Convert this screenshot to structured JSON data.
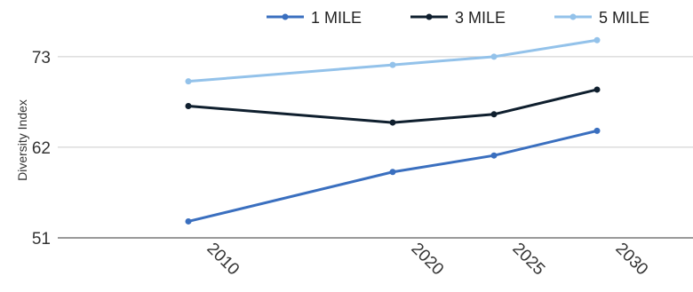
{
  "chart_data": {
    "type": "line",
    "ylabel": "Diversity Index",
    "xlabel": "",
    "ylim": [
      51,
      76
    ],
    "yticks": [
      "51",
      "62",
      "73"
    ],
    "xticks": [
      "2010",
      "2020",
      "2025",
      "2030"
    ],
    "x": [
      2010,
      2020,
      2025,
      2030
    ],
    "grid": "horizontal",
    "legend_position": "top-right",
    "series": [
      {
        "name": "1 MILE",
        "color": "#3a6fbf",
        "values": [
          53.0,
          59.0,
          61.0,
          64.0
        ]
      },
      {
        "name": "3 MILE",
        "color": "#0f1f2e",
        "values": [
          67.0,
          65.0,
          66.0,
          69.0
        ]
      },
      {
        "name": "5 MILE",
        "color": "#93c2ea",
        "values": [
          70.0,
          72.0,
          73.0,
          75.0
        ]
      }
    ]
  }
}
